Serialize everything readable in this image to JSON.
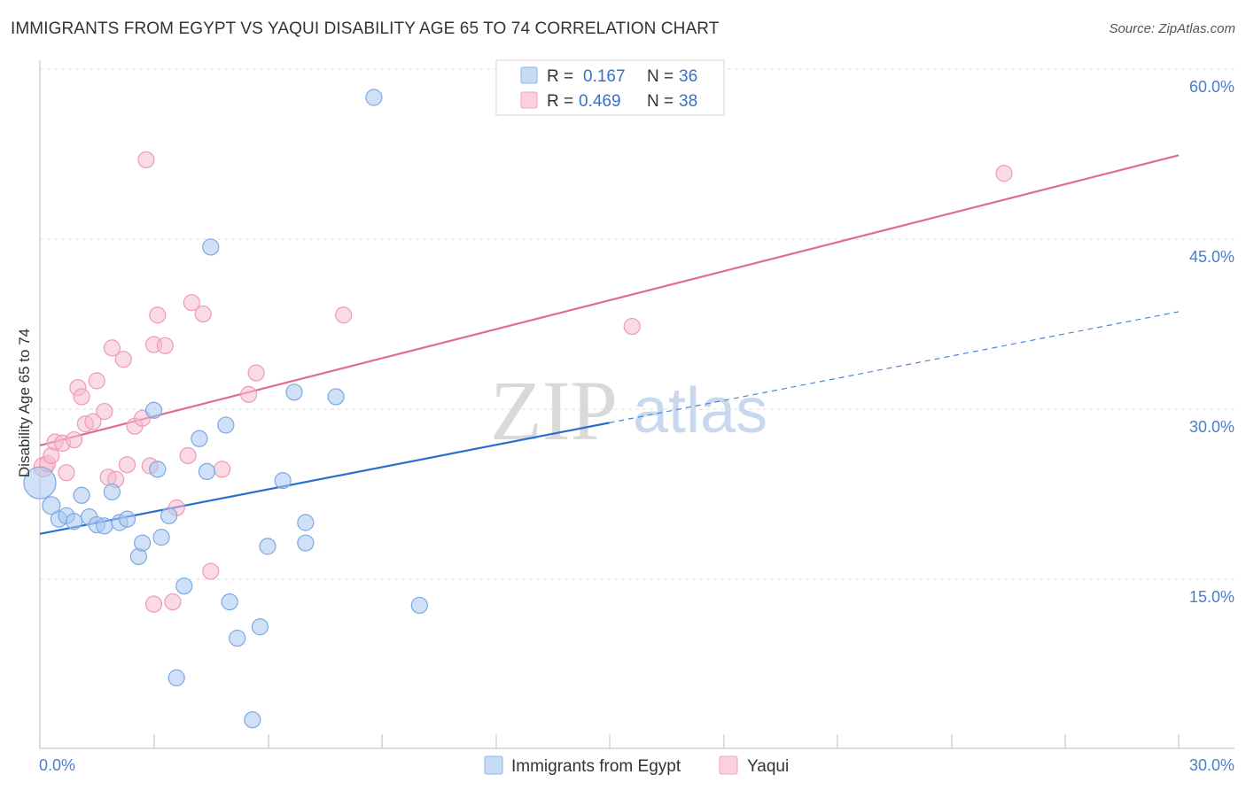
{
  "header": {
    "title": "IMMIGRANTS FROM EGYPT VS YAQUI DISABILITY AGE 65 TO 74 CORRELATION CHART",
    "source": "Source: ZipAtlas.com"
  },
  "legend": {
    "r_label": "R =",
    "n_label": "N =",
    "rows": [
      {
        "r": "0.167",
        "n": "36",
        "color": "#a9c8f0"
      },
      {
        "r": "0.469",
        "n": "38",
        "color": "#f5b8c8"
      }
    ]
  },
  "bottom_legend": [
    "Immigrants from Egypt",
    "Yaqui"
  ],
  "watermark": {
    "zip": "ZIP",
    "atlas": "atlas"
  },
  "colors": {
    "blue": "#7ab0e8",
    "blue_line": "#2a6fd0",
    "pink": "#f29ab3",
    "pink_line": "#e06a92"
  },
  "chart_data": {
    "type": "scatter",
    "title": "IMMIGRANTS FROM EGYPT VS YAQUI DISABILITY AGE 65 TO 74 CORRELATION CHART",
    "xlabel": "",
    "ylabel": "Disability Age 65 to 74",
    "xlim": [
      0,
      30
    ],
    "ylim": [
      0,
      60
    ],
    "x_tick_labels": [
      "0.0%",
      "30.0%"
    ],
    "y_ticks": [
      15,
      30,
      45,
      60
    ],
    "y_tick_labels": [
      "15.0%",
      "30.0%",
      "45.0%",
      "60.0%"
    ],
    "series": [
      {
        "name": "Immigrants from Egypt",
        "r": 0.167,
        "n": 36,
        "trend": {
          "x0": 0,
          "y0": 19.0,
          "x1": 15,
          "y1": 28.8,
          "dash_to_x": 30,
          "dash_to_y": 38.6
        },
        "points": [
          [
            0.0,
            23.5,
            18
          ],
          [
            0.3,
            21.5,
            10
          ],
          [
            0.5,
            20.3,
            9
          ],
          [
            0.7,
            20.6,
            9
          ],
          [
            0.9,
            20.1,
            9
          ],
          [
            1.1,
            22.4,
            9
          ],
          [
            1.3,
            20.5,
            9
          ],
          [
            1.5,
            19.8,
            9
          ],
          [
            1.7,
            19.7,
            9
          ],
          [
            1.9,
            22.7,
            9
          ],
          [
            2.1,
            20.0,
            9
          ],
          [
            2.3,
            20.3,
            9
          ],
          [
            2.6,
            17.0,
            9
          ],
          [
            2.7,
            18.2,
            9
          ],
          [
            3.0,
            29.9,
            9
          ],
          [
            3.1,
            24.7,
            9
          ],
          [
            3.2,
            18.7,
            9
          ],
          [
            3.4,
            20.6,
            9
          ],
          [
            3.6,
            6.3,
            9
          ],
          [
            3.8,
            14.4,
            9
          ],
          [
            4.2,
            27.4,
            9
          ],
          [
            4.4,
            24.5,
            9
          ],
          [
            4.5,
            44.3,
            9
          ],
          [
            4.9,
            28.6,
            9
          ],
          [
            5.0,
            13.0,
            9
          ],
          [
            5.2,
            9.8,
            9
          ],
          [
            5.6,
            2.6,
            9
          ],
          [
            5.8,
            10.8,
            9
          ],
          [
            6.0,
            17.9,
            9
          ],
          [
            6.4,
            23.7,
            9
          ],
          [
            6.7,
            31.5,
            9
          ],
          [
            7.0,
            18.2,
            9
          ],
          [
            7.0,
            20.0,
            9
          ],
          [
            7.8,
            31.1,
            9
          ],
          [
            8.8,
            57.5,
            9
          ],
          [
            10.0,
            12.7,
            9
          ]
        ]
      },
      {
        "name": "Yaqui",
        "r": 0.469,
        "n": 38,
        "trend": {
          "x0": 0,
          "y0": 26.8,
          "x1": 30,
          "y1": 52.4
        },
        "points": [
          [
            0.1,
            24.9,
            11
          ],
          [
            0.2,
            25.2,
            9
          ],
          [
            0.3,
            25.9,
            9
          ],
          [
            0.4,
            27.1,
            9
          ],
          [
            0.6,
            27.0,
            9
          ],
          [
            0.7,
            24.4,
            9
          ],
          [
            0.9,
            27.3,
            9
          ],
          [
            1.0,
            31.9,
            9
          ],
          [
            1.1,
            31.1,
            9
          ],
          [
            1.2,
            28.7,
            9
          ],
          [
            1.4,
            28.9,
            9
          ],
          [
            1.5,
            32.5,
            9
          ],
          [
            1.7,
            29.8,
            9
          ],
          [
            1.8,
            24.0,
            9
          ],
          [
            1.9,
            35.4,
            9
          ],
          [
            2.0,
            23.8,
            9
          ],
          [
            2.2,
            34.4,
            9
          ],
          [
            2.3,
            25.1,
            9
          ],
          [
            2.5,
            28.5,
            9
          ],
          [
            2.7,
            29.2,
            9
          ],
          [
            2.8,
            52.0,
            9
          ],
          [
            2.9,
            25.0,
            9
          ],
          [
            3.0,
            12.8,
            9
          ],
          [
            3.0,
            35.7,
            9
          ],
          [
            3.1,
            38.3,
            9
          ],
          [
            3.3,
            35.6,
            9
          ],
          [
            3.5,
            13.0,
            9
          ],
          [
            3.6,
            21.3,
            9
          ],
          [
            3.9,
            25.9,
            9
          ],
          [
            4.0,
            39.4,
            9
          ],
          [
            4.3,
            38.4,
            9
          ],
          [
            4.5,
            15.7,
            9
          ],
          [
            4.8,
            24.7,
            9
          ],
          [
            5.5,
            31.3,
            9
          ],
          [
            5.7,
            33.2,
            9
          ],
          [
            8.0,
            38.3,
            9
          ],
          [
            15.6,
            37.3,
            9
          ],
          [
            25.4,
            50.8,
            9
          ]
        ]
      }
    ]
  }
}
